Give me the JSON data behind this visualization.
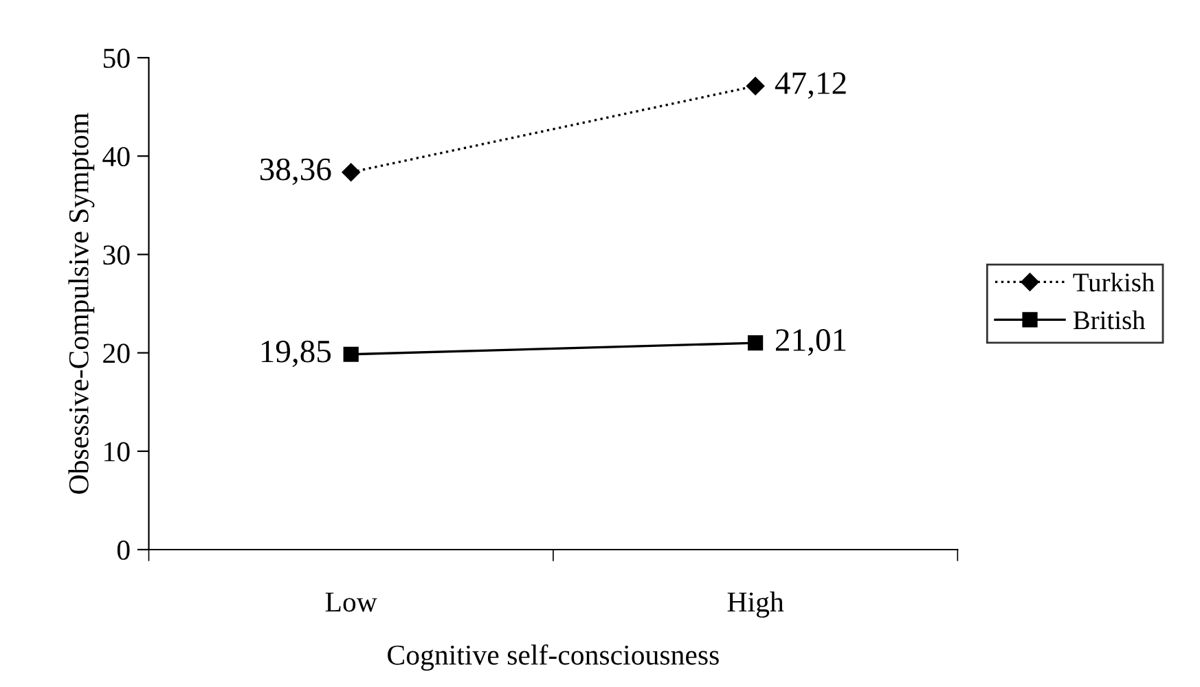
{
  "chart_data": {
    "type": "line",
    "xlabel": "Cognitive self-consciousness",
    "ylabel": "Obsessive-Compulsive Symptom",
    "categories": [
      "Low",
      "High"
    ],
    "series": [
      {
        "name": "Turkish",
        "color": "#000000",
        "values": [
          38.36,
          47.12
        ],
        "value_labels": [
          "38,36",
          "47,12"
        ],
        "marker": "diamond",
        "line_style": "dotted"
      },
      {
        "name": "British",
        "color": "#000000",
        "values": [
          19.85,
          21.01
        ],
        "value_labels": [
          "19,85",
          "21,01"
        ],
        "marker": "square",
        "line_style": "solid"
      }
    ],
    "ylim": [
      0,
      50
    ],
    "yticks": [
      0,
      10,
      20,
      30,
      40,
      50
    ],
    "grid": false,
    "legend": "right"
  }
}
